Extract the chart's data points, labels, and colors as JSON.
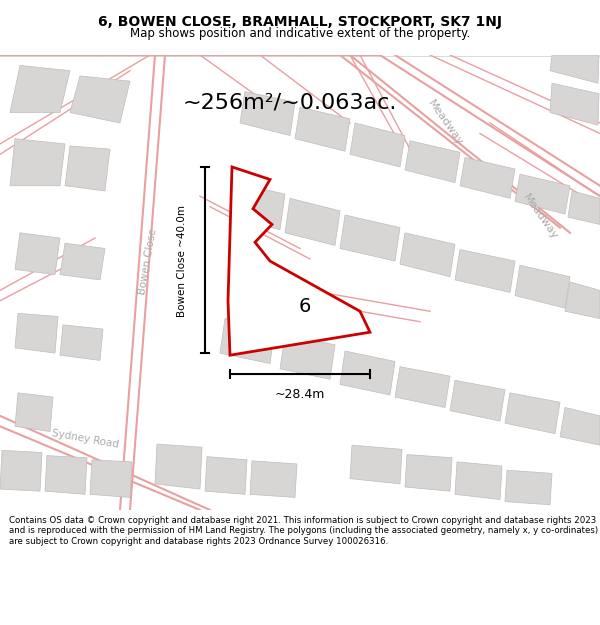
{
  "title_line1": "6, BOWEN CLOSE, BRAMHALL, STOCKPORT, SK7 1NJ",
  "title_line2": "Map shows position and indicative extent of the property.",
  "area_text": "~256m²/~0.063ac.",
  "width_label": "~28.4m",
  "height_label": "Bowen Close ~40.0m",
  "number_label": "6",
  "road_label_1": "Meadway",
  "road_label_2": "Meadway",
  "road_label_sydney": "Sydney Road",
  "footer_text": "Contains OS data © Crown copyright and database right 2021. This information is subject to Crown copyright and database rights 2023 and is reproduced with the permission of HM Land Registry. The polygons (including the associated geometry, namely x, y co-ordinates) are subject to Crown copyright and database rights 2023 Ordnance Survey 100026316.",
  "bg_color": "#f5f5f5",
  "map_bg": "#f0eeee",
  "plot_color": "#cc0000",
  "plot_fill": "none",
  "block_color": "#d0cccc",
  "road_line_color": "#e8a0a0",
  "dim_color": "#000000",
  "title_bg": "#ffffff",
  "footer_bg": "#ffffff"
}
